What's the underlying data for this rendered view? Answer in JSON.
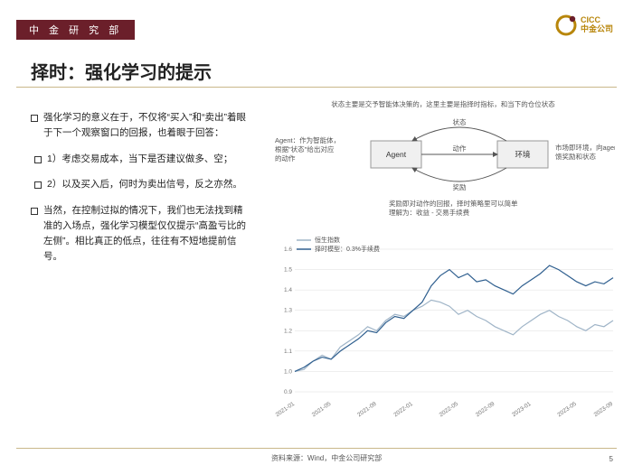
{
  "header": {
    "dept": "中 金 研 究 部"
  },
  "brand": {
    "en": "CICC",
    "cn": "中金公司",
    "color": "#b8860b"
  },
  "title": "择时：强化学习的提示",
  "bullets": {
    "b1": "强化学习的意义在于，不仅将“买入”和“卖出”着眼于下一个观察窗口的回报，也着眼于回答：",
    "b2": "1）考虑交易成本，当下是否建议做多、空；",
    "b3": "2）以及买入后，何时为卖出信号，反之亦然。",
    "b4": "当然，在控制过拟的情况下，我们也无法找到精准的入场点，强化学习模型仅仅提示“高盈亏比的左侧”。相比真正的低点，往往有不短地提前信号。"
  },
  "diagram": {
    "top_note": "状态主要是交予智能体决策的，这里主要是指择时指标，和当下的仓位状态",
    "left_note_1": "Agent：作为智能体，",
    "left_note_2": "根据“状态”给出对应的动作",
    "right_note_1": "市场即环境，向agent反馈奖励和状态",
    "bottom_note_1": "奖励即对动作的回报，择时策略里可以简单",
    "bottom_note_2": "理解为：收益 - 交易手续费",
    "agent": "Agent",
    "env": "环境",
    "edge_state": "状态",
    "edge_action": "动作",
    "edge_reward": "奖励",
    "node_fill": "#f0f0f0",
    "node_stroke": "#999999"
  },
  "chart": {
    "type": "line",
    "legend": {
      "s1": "恒生指数",
      "s2": "择时模型：0.3%手续费"
    },
    "ylim": [
      0.9,
      1.6
    ],
    "yticks": [
      0.9,
      1.0,
      1.1,
      1.2,
      1.3,
      1.4,
      1.5,
      1.6
    ],
    "xticks": [
      "2021-01",
      "2021-05",
      "2021-09",
      "2022-01",
      "2022-05",
      "2022-09",
      "2023-01",
      "2023-05",
      "2023-09"
    ],
    "colors": {
      "s1": "#9fb4c7",
      "s2": "#2f5f8f",
      "grid": "#dddddd",
      "bg": "#ffffff"
    },
    "line_width": 1.2,
    "series1": [
      1.0,
      1.01,
      1.05,
      1.08,
      1.06,
      1.12,
      1.15,
      1.18,
      1.22,
      1.2,
      1.25,
      1.28,
      1.27,
      1.3,
      1.32,
      1.35,
      1.34,
      1.32,
      1.28,
      1.3,
      1.27,
      1.25,
      1.22,
      1.2,
      1.18,
      1.22,
      1.25,
      1.28,
      1.3,
      1.27,
      1.25,
      1.22,
      1.2,
      1.23,
      1.22,
      1.25
    ],
    "series2": [
      1.0,
      1.02,
      1.05,
      1.07,
      1.06,
      1.1,
      1.13,
      1.16,
      1.2,
      1.19,
      1.24,
      1.27,
      1.26,
      1.3,
      1.34,
      1.42,
      1.47,
      1.5,
      1.46,
      1.48,
      1.44,
      1.45,
      1.42,
      1.4,
      1.38,
      1.42,
      1.45,
      1.48,
      1.52,
      1.5,
      1.47,
      1.44,
      1.42,
      1.44,
      1.43,
      1.46
    ]
  },
  "footer": {
    "source": "资料来源：Wind，中金公司研究部",
    "page": "5"
  }
}
